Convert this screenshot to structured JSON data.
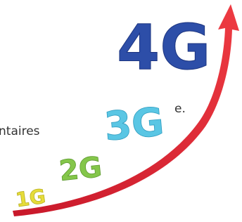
{
  "text_lines": [
    "e.",
    "ntaires"
  ],
  "generations": [
    "1G",
    "2G",
    "3G",
    "4G"
  ]
}
